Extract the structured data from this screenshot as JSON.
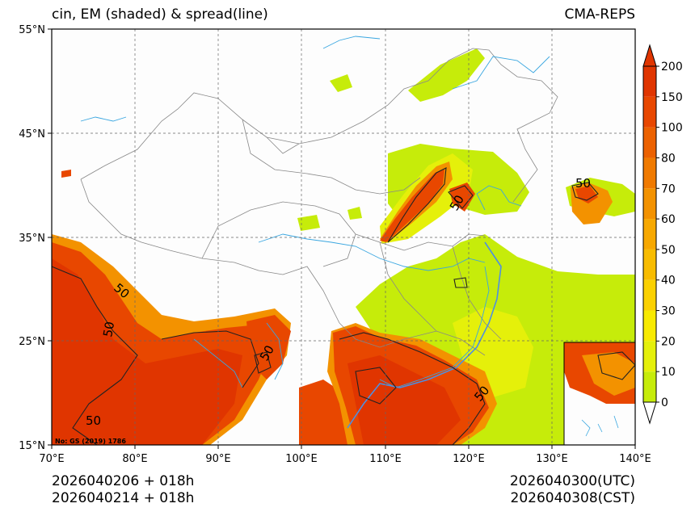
{
  "title": {
    "left": "cin, EM (shaded) & spread(line)",
    "right": "CMA-REPS"
  },
  "map": {
    "lon_range": [
      70,
      140
    ],
    "lat_range": [
      15,
      55
    ],
    "lon_ticks": [
      "70°E",
      "80°E",
      "90°E",
      "100°E",
      "110°E",
      "120°E",
      "130°E",
      "140°E"
    ],
    "lat_ticks": [
      "15°N",
      "25°N",
      "35°N",
      "45°N",
      "55°N"
    ],
    "review_number": "No: GS (2019) 1786",
    "contour_labels": [
      "50",
      "50",
      "50",
      "50",
      "50",
      "50",
      "50"
    ]
  },
  "colorbar": {
    "levels": [
      "0",
      "10",
      "20",
      "30",
      "40",
      "50",
      "60",
      "70",
      "80",
      "100",
      "150",
      "200"
    ],
    "colors": [
      "#c6ec0a",
      "#e5f00a",
      "#f8ea00",
      "#fbd100",
      "#f8bc00",
      "#f7a800",
      "#f39200",
      "#f07a00",
      "#ec6100",
      "#e84700",
      "#e03500"
    ],
    "over_color": "#e03500",
    "under_color": "#ffffff"
  },
  "info": {
    "init_utc": "2026040206  +  018h",
    "init_cst": "2026040214  +  018h",
    "valid_utc": "2026040300(UTC)",
    "valid_cst": "2026040308(CST)"
  },
  "colors": {
    "river": "#39a6e0",
    "border": "#888888",
    "grid": "#666666",
    "contour": "#222222"
  }
}
